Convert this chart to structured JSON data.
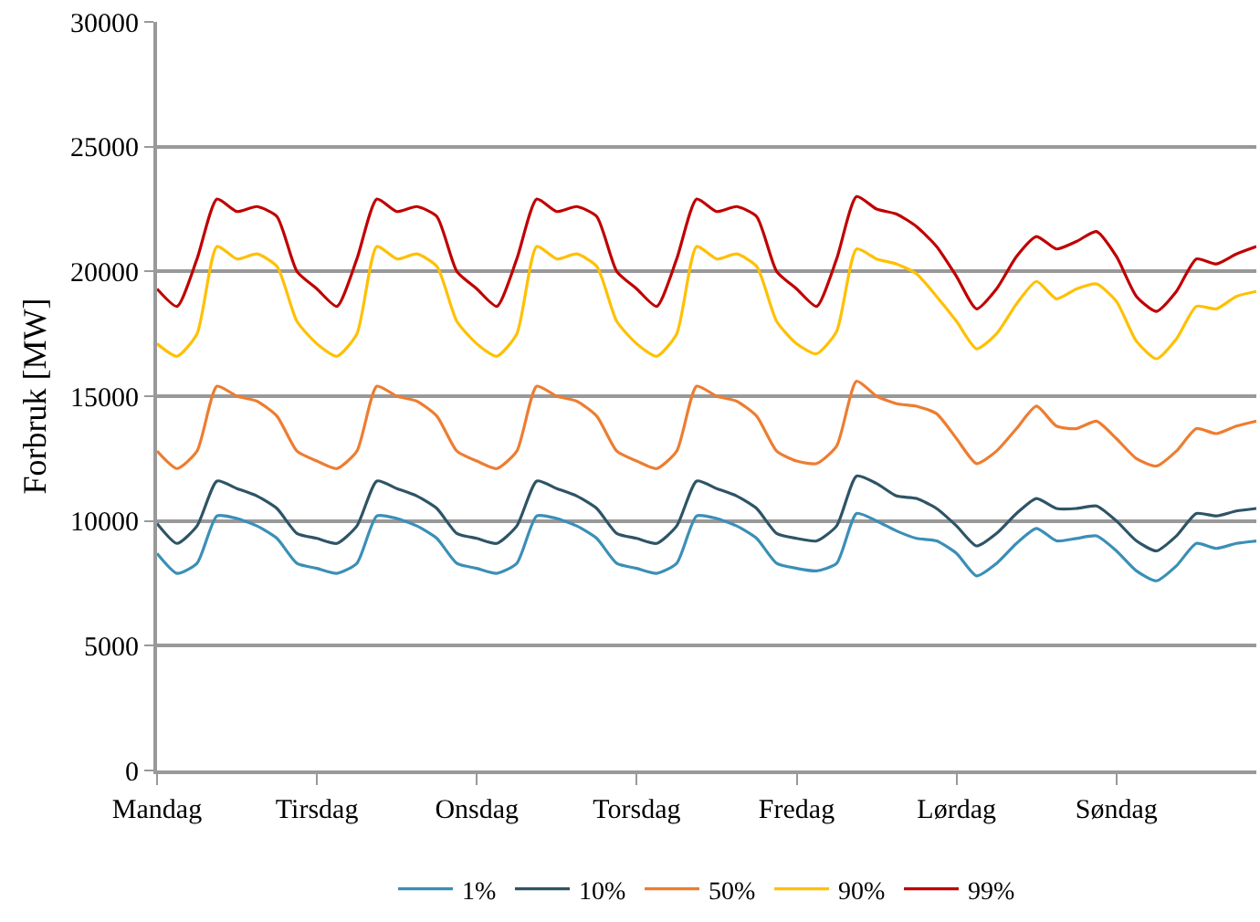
{
  "chart_data": {
    "type": "line",
    "ylabel": "Forbruk [MW]",
    "categories": [
      "Mandag",
      null,
      null,
      null,
      null,
      null,
      null,
      null,
      "Tirsdag",
      null,
      null,
      null,
      null,
      null,
      null,
      null,
      "Onsdag",
      null,
      null,
      null,
      null,
      null,
      null,
      null,
      "Torsdag",
      null,
      null,
      null,
      null,
      null,
      null,
      null,
      "Fredag",
      null,
      null,
      null,
      null,
      null,
      null,
      null,
      "Lørdag",
      null,
      null,
      null,
      null,
      null,
      null,
      null,
      "Søndag",
      null,
      null,
      null,
      null,
      null,
      null,
      null
    ],
    "ylim": [
      0,
      30000
    ],
    "yticks": [
      0,
      5000,
      10000,
      15000,
      20000,
      25000,
      30000
    ],
    "grid": "y",
    "legend": "bottom",
    "marker": "none",
    "line_style": "solid",
    "series": [
      {
        "name": "1%",
        "color": "#3a8fb7",
        "values": [
          8700,
          7900,
          8300,
          10200,
          10100,
          9800,
          9300,
          8300,
          8100,
          7900,
          8300,
          10200,
          10100,
          9800,
          9300,
          8300,
          8100,
          7900,
          8300,
          10200,
          10100,
          9800,
          9300,
          8300,
          8100,
          7900,
          8300,
          10200,
          10100,
          9800,
          9300,
          8300,
          8100,
          8000,
          8300,
          10300,
          10000,
          9600,
          9300,
          9200,
          8700,
          7800,
          8300,
          9100,
          9700,
          9200,
          9300,
          9400,
          8800,
          8000,
          7600,
          8200,
          9100,
          8900,
          9100,
          9200
        ]
      },
      {
        "name": "10%",
        "color": "#2e5466",
        "values": [
          9900,
          9100,
          9800,
          11600,
          11300,
          11000,
          10500,
          9500,
          9300,
          9100,
          9800,
          11600,
          11300,
          11000,
          10500,
          9500,
          9300,
          9100,
          9800,
          11600,
          11300,
          11000,
          10500,
          9500,
          9300,
          9100,
          9800,
          11600,
          11300,
          11000,
          10500,
          9500,
          9300,
          9200,
          9800,
          11800,
          11500,
          11000,
          10900,
          10500,
          9800,
          9000,
          9500,
          10300,
          10900,
          10500,
          10500,
          10600,
          10000,
          9200,
          8800,
          9400,
          10300,
          10200,
          10400,
          10500
        ]
      },
      {
        "name": "50%",
        "color": "#ed7d31",
        "values": [
          12800,
          12100,
          12800,
          15400,
          15000,
          14800,
          14200,
          12800,
          12400,
          12100,
          12800,
          15400,
          15000,
          14800,
          14200,
          12800,
          12400,
          12100,
          12800,
          15400,
          15000,
          14800,
          14200,
          12800,
          12400,
          12100,
          12800,
          15400,
          15000,
          14800,
          14200,
          12800,
          12400,
          12300,
          13000,
          15600,
          15000,
          14700,
          14600,
          14300,
          13300,
          12300,
          12800,
          13700,
          14600,
          13800,
          13700,
          14000,
          13300,
          12500,
          12200,
          12800,
          13700,
          13500,
          13800,
          14000
        ]
      },
      {
        "name": "90%",
        "color": "#ffc000",
        "values": [
          17100,
          16600,
          17500,
          21000,
          20500,
          20700,
          20200,
          18000,
          17100,
          16600,
          17500,
          21000,
          20500,
          20700,
          20200,
          18000,
          17100,
          16600,
          17500,
          21000,
          20500,
          20700,
          20200,
          18000,
          17100,
          16600,
          17500,
          21000,
          20500,
          20700,
          20200,
          18000,
          17100,
          16700,
          17600,
          20900,
          20500,
          20300,
          19900,
          19000,
          18000,
          16900,
          17500,
          18700,
          19600,
          18900,
          19300,
          19500,
          18800,
          17200,
          16500,
          17300,
          18600,
          18500,
          19000,
          19200
        ]
      },
      {
        "name": "99%",
        "color": "#c00000",
        "values": [
          19300,
          18600,
          20500,
          22900,
          22400,
          22600,
          22200,
          20000,
          19300,
          18600,
          20500,
          22900,
          22400,
          22600,
          22200,
          20000,
          19300,
          18600,
          20500,
          22900,
          22400,
          22600,
          22200,
          20000,
          19300,
          18600,
          20500,
          22900,
          22400,
          22600,
          22200,
          20000,
          19300,
          18600,
          20500,
          23000,
          22500,
          22300,
          21800,
          21000,
          19800,
          18500,
          19300,
          20600,
          21400,
          20900,
          21200,
          21600,
          20600,
          19000,
          18400,
          19200,
          20500,
          20300,
          20700,
          21000
        ]
      }
    ]
  }
}
